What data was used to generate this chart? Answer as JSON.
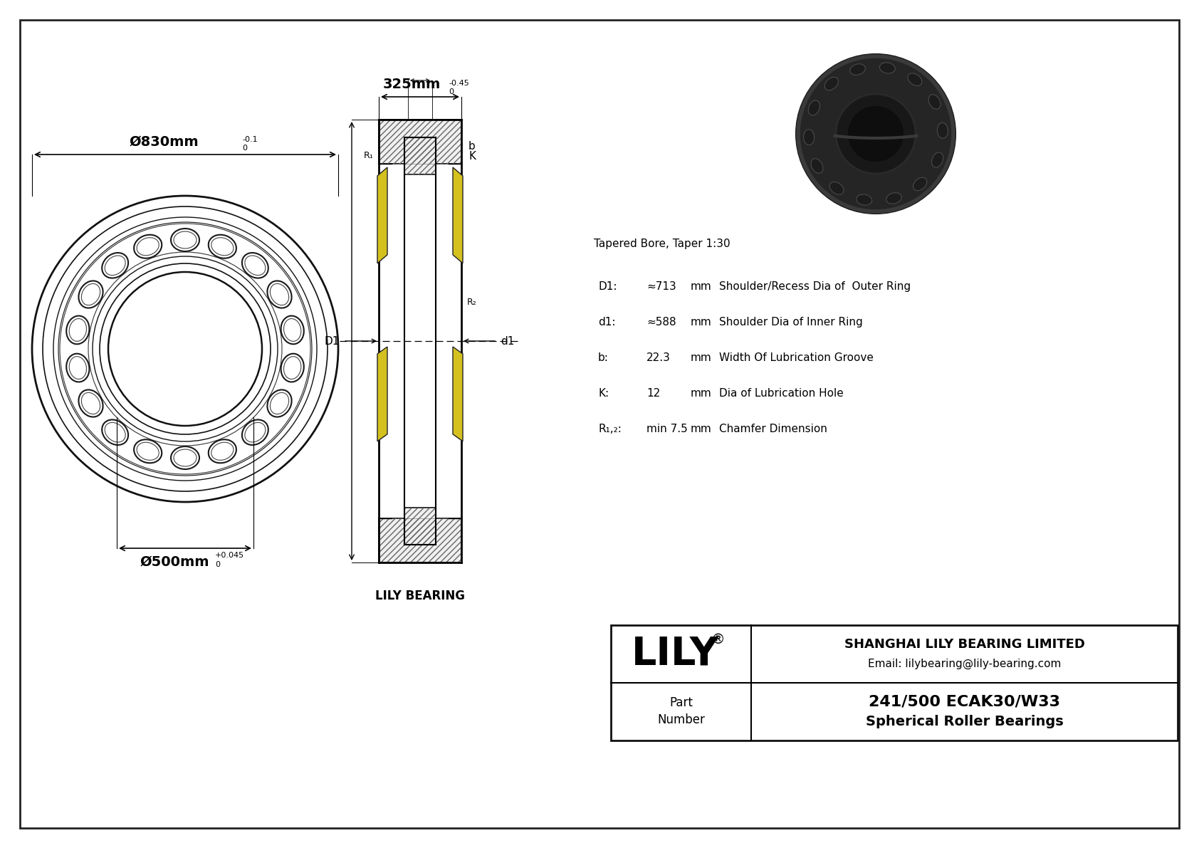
{
  "bg_color": "#ffffff",
  "outer_dia_main": "Ø830mm",
  "outer_dia_tol_upper": "0",
  "outer_dia_tol_lower": "-0.1",
  "inner_dia_main": "Ø500mm",
  "inner_dia_tol_upper": "+0.045",
  "inner_dia_tol_lower": "0",
  "width_main": "325mm",
  "width_tol_upper": "0",
  "width_tol_lower": "-0.45",
  "taper_note": "Tapered Bore, Taper 1:30",
  "spec_rows": [
    {
      "param": "D1:",
      "value": "≈713",
      "unit": "mm",
      "desc": "Shoulder/Recess Dia of  Outer Ring"
    },
    {
      "param": "d1:",
      "value": "≈588",
      "unit": "mm",
      "desc": "Shoulder Dia of Inner Ring"
    },
    {
      "param": "b:",
      "value": "22.3",
      "unit": "mm",
      "desc": "Width Of Lubrication Groove"
    },
    {
      "param": "K:",
      "value": "12",
      "unit": "mm",
      "desc": "Dia of Lubrication Hole"
    },
    {
      "param": "R₁,₂:",
      "value": "min 7.5",
      "unit": "mm",
      "desc": "Chamfer Dimension"
    }
  ],
  "label_b": "b",
  "label_K": "K",
  "label_R1": "R₁",
  "label_R2": "R₂",
  "label_D1": "D1",
  "label_d1": "d1",
  "lily_bearing": "LILY BEARING",
  "part_number": "241/500 ECAK30/W33",
  "product_type": "Spherical Roller Bearings",
  "company": "SHANGHAI LILY BEARING LIMITED",
  "email": "Email: lilybearing@lily-bearing.com"
}
